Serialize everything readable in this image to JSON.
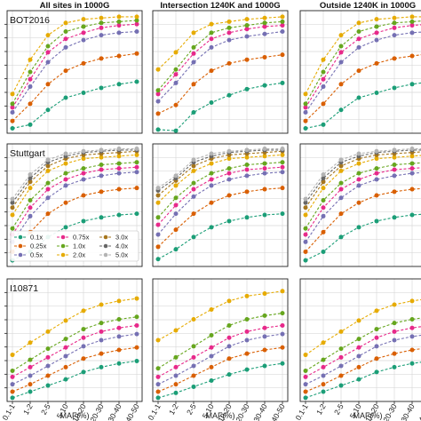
{
  "figure": {
    "column_titles": [
      "All sites in 1000G",
      "Intersection 1240K and 1000G",
      "Outside 1240K in 1000G"
    ],
    "row_titles": [
      "BOT2016",
      "Stuttgart",
      "I10871"
    ],
    "x_axis_label": "MAF(%)"
  },
  "chart_data": {
    "type": "line",
    "layout": "3x3 grid of panels",
    "categories": [
      "0.1-1",
      "1-2",
      "2-5",
      "5-10",
      "10-20",
      "20-30",
      "30-40",
      "40-50"
    ],
    "xlabel": "MAF(%)",
    "ylabel": "",
    "ylim": [
      0,
      1
    ],
    "grid": true,
    "legend_position": "bottom-left of Stuttgart / All sites panel",
    "coverage_levels": [
      {
        "name": "0.1x",
        "color": "#1b9e77"
      },
      {
        "name": "0.25x",
        "color": "#d95f02"
      },
      {
        "name": "0.5x",
        "color": "#7570b3"
      },
      {
        "name": "0.75x",
        "color": "#e7298a"
      },
      {
        "name": "1.0x",
        "color": "#66a61e"
      },
      {
        "name": "2.0x",
        "color": "#e6ab02"
      },
      {
        "name": "3.0x",
        "color": "#a6761d"
      },
      {
        "name": "4.0x",
        "color": "#666666"
      },
      {
        "name": "5.0x",
        "color": "#b3b3b3"
      }
    ],
    "panels": [
      {
        "row": "BOT2016",
        "column": "All sites in 1000G",
        "series": [
          {
            "name": "0.1x",
            "values": [
              0.04,
              0.07,
              0.19,
              0.29,
              0.33,
              0.37,
              0.4,
              0.42
            ]
          },
          {
            "name": "0.25x",
            "values": [
              0.1,
              0.24,
              0.4,
              0.51,
              0.57,
              0.61,
              0.63,
              0.65
            ]
          },
          {
            "name": "0.5x",
            "values": [
              0.17,
              0.38,
              0.58,
              0.7,
              0.76,
              0.8,
              0.82,
              0.83
            ]
          },
          {
            "name": "0.75x",
            "values": [
              0.21,
              0.44,
              0.66,
              0.77,
              0.82,
              0.86,
              0.88,
              0.89
            ]
          },
          {
            "name": "1.0x",
            "values": [
              0.24,
              0.5,
              0.71,
              0.83,
              0.87,
              0.9,
              0.91,
              0.92
            ]
          },
          {
            "name": "2.0x",
            "values": [
              0.32,
              0.6,
              0.8,
              0.9,
              0.93,
              0.94,
              0.95,
              0.95
            ]
          }
        ]
      },
      {
        "row": "BOT2016",
        "column": "Intersection 1240K and 1000G",
        "series": [
          {
            "name": "0.1x",
            "values": [
              0.03,
              0.02,
              0.17,
              0.25,
              0.31,
              0.36,
              0.39,
              0.41
            ]
          },
          {
            "name": "0.25x",
            "values": [
              0.16,
              0.23,
              0.4,
              0.51,
              0.57,
              0.6,
              0.62,
              0.64
            ]
          },
          {
            "name": "0.5x",
            "values": [
              0.26,
              0.41,
              0.58,
              0.7,
              0.76,
              0.79,
              0.81,
              0.83
            ]
          },
          {
            "name": "0.75x",
            "values": [
              0.32,
              0.48,
              0.65,
              0.77,
              0.82,
              0.85,
              0.87,
              0.88
            ]
          },
          {
            "name": "1.0x",
            "values": [
              0.35,
              0.52,
              0.7,
              0.82,
              0.86,
              0.88,
              0.9,
              0.91
            ]
          },
          {
            "name": "2.0x",
            "values": [
              0.52,
              0.66,
              0.82,
              0.89,
              0.91,
              0.93,
              0.94,
              0.95
            ]
          }
        ]
      },
      {
        "row": "BOT2016",
        "column": "Outside 1240K in 1000G",
        "series": [
          {
            "name": "0.1x",
            "values": [
              0.04,
              0.07,
              0.19,
              0.29,
              0.33,
              0.37,
              0.4,
              0.42
            ]
          },
          {
            "name": "0.25x",
            "values": [
              0.1,
              0.24,
              0.4,
              0.51,
              0.57,
              0.61,
              0.63,
              0.65
            ]
          },
          {
            "name": "0.5x",
            "values": [
              0.17,
              0.38,
              0.58,
              0.7,
              0.76,
              0.8,
              0.82,
              0.83
            ]
          },
          {
            "name": "0.75x",
            "values": [
              0.21,
              0.44,
              0.66,
              0.77,
              0.82,
              0.86,
              0.88,
              0.89
            ]
          },
          {
            "name": "1.0x",
            "values": [
              0.24,
              0.5,
              0.71,
              0.83,
              0.87,
              0.9,
              0.91,
              0.92
            ]
          },
          {
            "name": "2.0x",
            "values": [
              0.32,
              0.6,
              0.8,
              0.9,
              0.93,
              0.94,
              0.95,
              0.95
            ]
          }
        ]
      },
      {
        "row": "Stuttgart",
        "column": "All sites in 1000G",
        "series": [
          {
            "name": "0.1x",
            "values": [
              0.05,
              0.12,
              0.24,
              0.32,
              0.37,
              0.4,
              0.42,
              0.43
            ]
          },
          {
            "name": "0.25x",
            "values": [
              0.12,
              0.28,
              0.43,
              0.52,
              0.58,
              0.61,
              0.63,
              0.64
            ]
          },
          {
            "name": "0.5x",
            "values": [
              0.2,
              0.41,
              0.56,
              0.66,
              0.71,
              0.74,
              0.76,
              0.77
            ]
          },
          {
            "name": "0.75x",
            "values": [
              0.26,
              0.48,
              0.63,
              0.71,
              0.76,
              0.79,
              0.8,
              0.81
            ]
          },
          {
            "name": "1.0x",
            "values": [
              0.31,
              0.54,
              0.68,
              0.76,
              0.8,
              0.83,
              0.84,
              0.85
            ]
          },
          {
            "name": "2.0x",
            "values": [
              0.42,
              0.64,
              0.78,
              0.84,
              0.88,
              0.89,
              0.9,
              0.91
            ]
          },
          {
            "name": "3.0x",
            "values": [
              0.48,
              0.69,
              0.82,
              0.88,
              0.91,
              0.92,
              0.93,
              0.94
            ]
          },
          {
            "name": "4.0x",
            "values": [
              0.52,
              0.72,
              0.85,
              0.9,
              0.93,
              0.94,
              0.95,
              0.95
            ]
          },
          {
            "name": "5.0x",
            "values": [
              0.55,
              0.75,
              0.87,
              0.92,
              0.94,
              0.95,
              0.96,
              0.96
            ]
          }
        ]
      },
      {
        "row": "Stuttgart",
        "column": "Intersection 1240K and 1000G",
        "series": [
          {
            "name": "0.1x",
            "values": [
              0.06,
              0.14,
              0.24,
              0.32,
              0.37,
              0.4,
              0.42,
              0.43
            ]
          },
          {
            "name": "0.25x",
            "values": [
              0.16,
              0.3,
              0.43,
              0.52,
              0.58,
              0.61,
              0.63,
              0.64
            ]
          },
          {
            "name": "0.5x",
            "values": [
              0.26,
              0.43,
              0.57,
              0.66,
              0.71,
              0.74,
              0.76,
              0.77
            ]
          },
          {
            "name": "0.75x",
            "values": [
              0.34,
              0.5,
              0.63,
              0.71,
              0.76,
              0.79,
              0.8,
              0.81
            ]
          },
          {
            "name": "1.0x",
            "values": [
              0.4,
              0.56,
              0.68,
              0.76,
              0.8,
              0.83,
              0.84,
              0.85
            ]
          },
          {
            "name": "2.0x",
            "values": [
              0.52,
              0.66,
              0.78,
              0.84,
              0.88,
              0.89,
              0.9,
              0.91
            ]
          },
          {
            "name": "3.0x",
            "values": [
              0.58,
              0.7,
              0.82,
              0.88,
              0.91,
              0.92,
              0.93,
              0.94
            ]
          },
          {
            "name": "4.0x",
            "values": [
              0.62,
              0.72,
              0.85,
              0.9,
              0.93,
              0.94,
              0.95,
              0.95
            ]
          },
          {
            "name": "5.0x",
            "values": [
              0.64,
              0.74,
              0.87,
              0.92,
              0.94,
              0.95,
              0.96,
              0.96
            ]
          }
        ]
      },
      {
        "row": "Stuttgart",
        "column": "Outside 1240K in 1000G",
        "series": [
          {
            "name": "0.1x",
            "values": [
              0.05,
              0.12,
              0.24,
              0.32,
              0.37,
              0.4,
              0.42,
              0.43
            ]
          },
          {
            "name": "0.25x",
            "values": [
              0.12,
              0.28,
              0.43,
              0.52,
              0.58,
              0.61,
              0.63,
              0.64
            ]
          },
          {
            "name": "0.5x",
            "values": [
              0.2,
              0.41,
              0.56,
              0.66,
              0.71,
              0.74,
              0.76,
              0.77
            ]
          },
          {
            "name": "0.75x",
            "values": [
              0.26,
              0.48,
              0.63,
              0.71,
              0.76,
              0.79,
              0.8,
              0.81
            ]
          },
          {
            "name": "1.0x",
            "values": [
              0.31,
              0.54,
              0.68,
              0.76,
              0.8,
              0.83,
              0.84,
              0.85
            ]
          },
          {
            "name": "2.0x",
            "values": [
              0.42,
              0.64,
              0.78,
              0.84,
              0.88,
              0.89,
              0.9,
              0.91
            ]
          },
          {
            "name": "3.0x",
            "values": [
              0.48,
              0.69,
              0.82,
              0.88,
              0.91,
              0.92,
              0.93,
              0.94
            ]
          },
          {
            "name": "4.0x",
            "values": [
              0.52,
              0.72,
              0.85,
              0.9,
              0.93,
              0.94,
              0.95,
              0.95
            ]
          },
          {
            "name": "5.0x",
            "values": [
              0.55,
              0.75,
              0.87,
              0.92,
              0.94,
              0.95,
              0.96,
              0.96
            ]
          }
        ]
      },
      {
        "row": "I10871",
        "column": "All sites in 1000G",
        "series": [
          {
            "name": "0.1x",
            "values": [
              0.03,
              0.08,
              0.13,
              0.18,
              0.24,
              0.28,
              0.31,
              0.33
            ]
          },
          {
            "name": "0.25x",
            "values": [
              0.08,
              0.14,
              0.21,
              0.28,
              0.35,
              0.39,
              0.42,
              0.44
            ]
          },
          {
            "name": "0.5x",
            "values": [
              0.14,
              0.21,
              0.29,
              0.37,
              0.45,
              0.5,
              0.53,
              0.55
            ]
          },
          {
            "name": "0.75x",
            "values": [
              0.2,
              0.28,
              0.36,
              0.44,
              0.52,
              0.57,
              0.6,
              0.62
            ]
          },
          {
            "name": "1.0x",
            "values": [
              0.25,
              0.34,
              0.43,
              0.51,
              0.59,
              0.64,
              0.67,
              0.69
            ]
          },
          {
            "name": "2.0x",
            "values": [
              0.38,
              0.48,
              0.57,
              0.66,
              0.74,
              0.79,
              0.82,
              0.84
            ]
          }
        ]
      },
      {
        "row": "I10871",
        "column": "Intersection 1240K and 1000G",
        "series": [
          {
            "name": "0.1x",
            "values": [
              0.03,
              0.07,
              0.12,
              0.17,
              0.22,
              0.26,
              0.29,
              0.31
            ]
          },
          {
            "name": "0.25x",
            "values": [
              0.08,
              0.14,
              0.21,
              0.28,
              0.35,
              0.39,
              0.42,
              0.44
            ]
          },
          {
            "name": "0.5x",
            "values": [
              0.14,
              0.21,
              0.29,
              0.37,
              0.45,
              0.5,
              0.53,
              0.55
            ]
          },
          {
            "name": "0.75x",
            "values": [
              0.2,
              0.28,
              0.36,
              0.44,
              0.52,
              0.57,
              0.6,
              0.62
            ]
          },
          {
            "name": "1.0x",
            "values": [
              0.27,
              0.36,
              0.45,
              0.54,
              0.62,
              0.67,
              0.7,
              0.72
            ]
          },
          {
            "name": "2.0x",
            "values": [
              0.5,
              0.58,
              0.67,
              0.75,
              0.82,
              0.86,
              0.88,
              0.9
            ]
          }
        ]
      },
      {
        "row": "I10871",
        "column": "Outside 1240K in 1000G",
        "series": [
          {
            "name": "0.1x",
            "values": [
              0.03,
              0.08,
              0.13,
              0.18,
              0.24,
              0.28,
              0.31,
              0.33
            ]
          },
          {
            "name": "0.25x",
            "values": [
              0.08,
              0.14,
              0.21,
              0.28,
              0.35,
              0.39,
              0.42,
              0.44
            ]
          },
          {
            "name": "0.5x",
            "values": [
              0.14,
              0.21,
              0.29,
              0.37,
              0.45,
              0.5,
              0.53,
              0.55
            ]
          },
          {
            "name": "0.75x",
            "values": [
              0.2,
              0.28,
              0.36,
              0.44,
              0.52,
              0.57,
              0.6,
              0.62
            ]
          },
          {
            "name": "1.0x",
            "values": [
              0.25,
              0.34,
              0.43,
              0.51,
              0.59,
              0.64,
              0.67,
              0.69
            ]
          },
          {
            "name": "2.0x",
            "values": [
              0.38,
              0.48,
              0.57,
              0.66,
              0.74,
              0.79,
              0.82,
              0.84
            ]
          }
        ]
      }
    ]
  }
}
